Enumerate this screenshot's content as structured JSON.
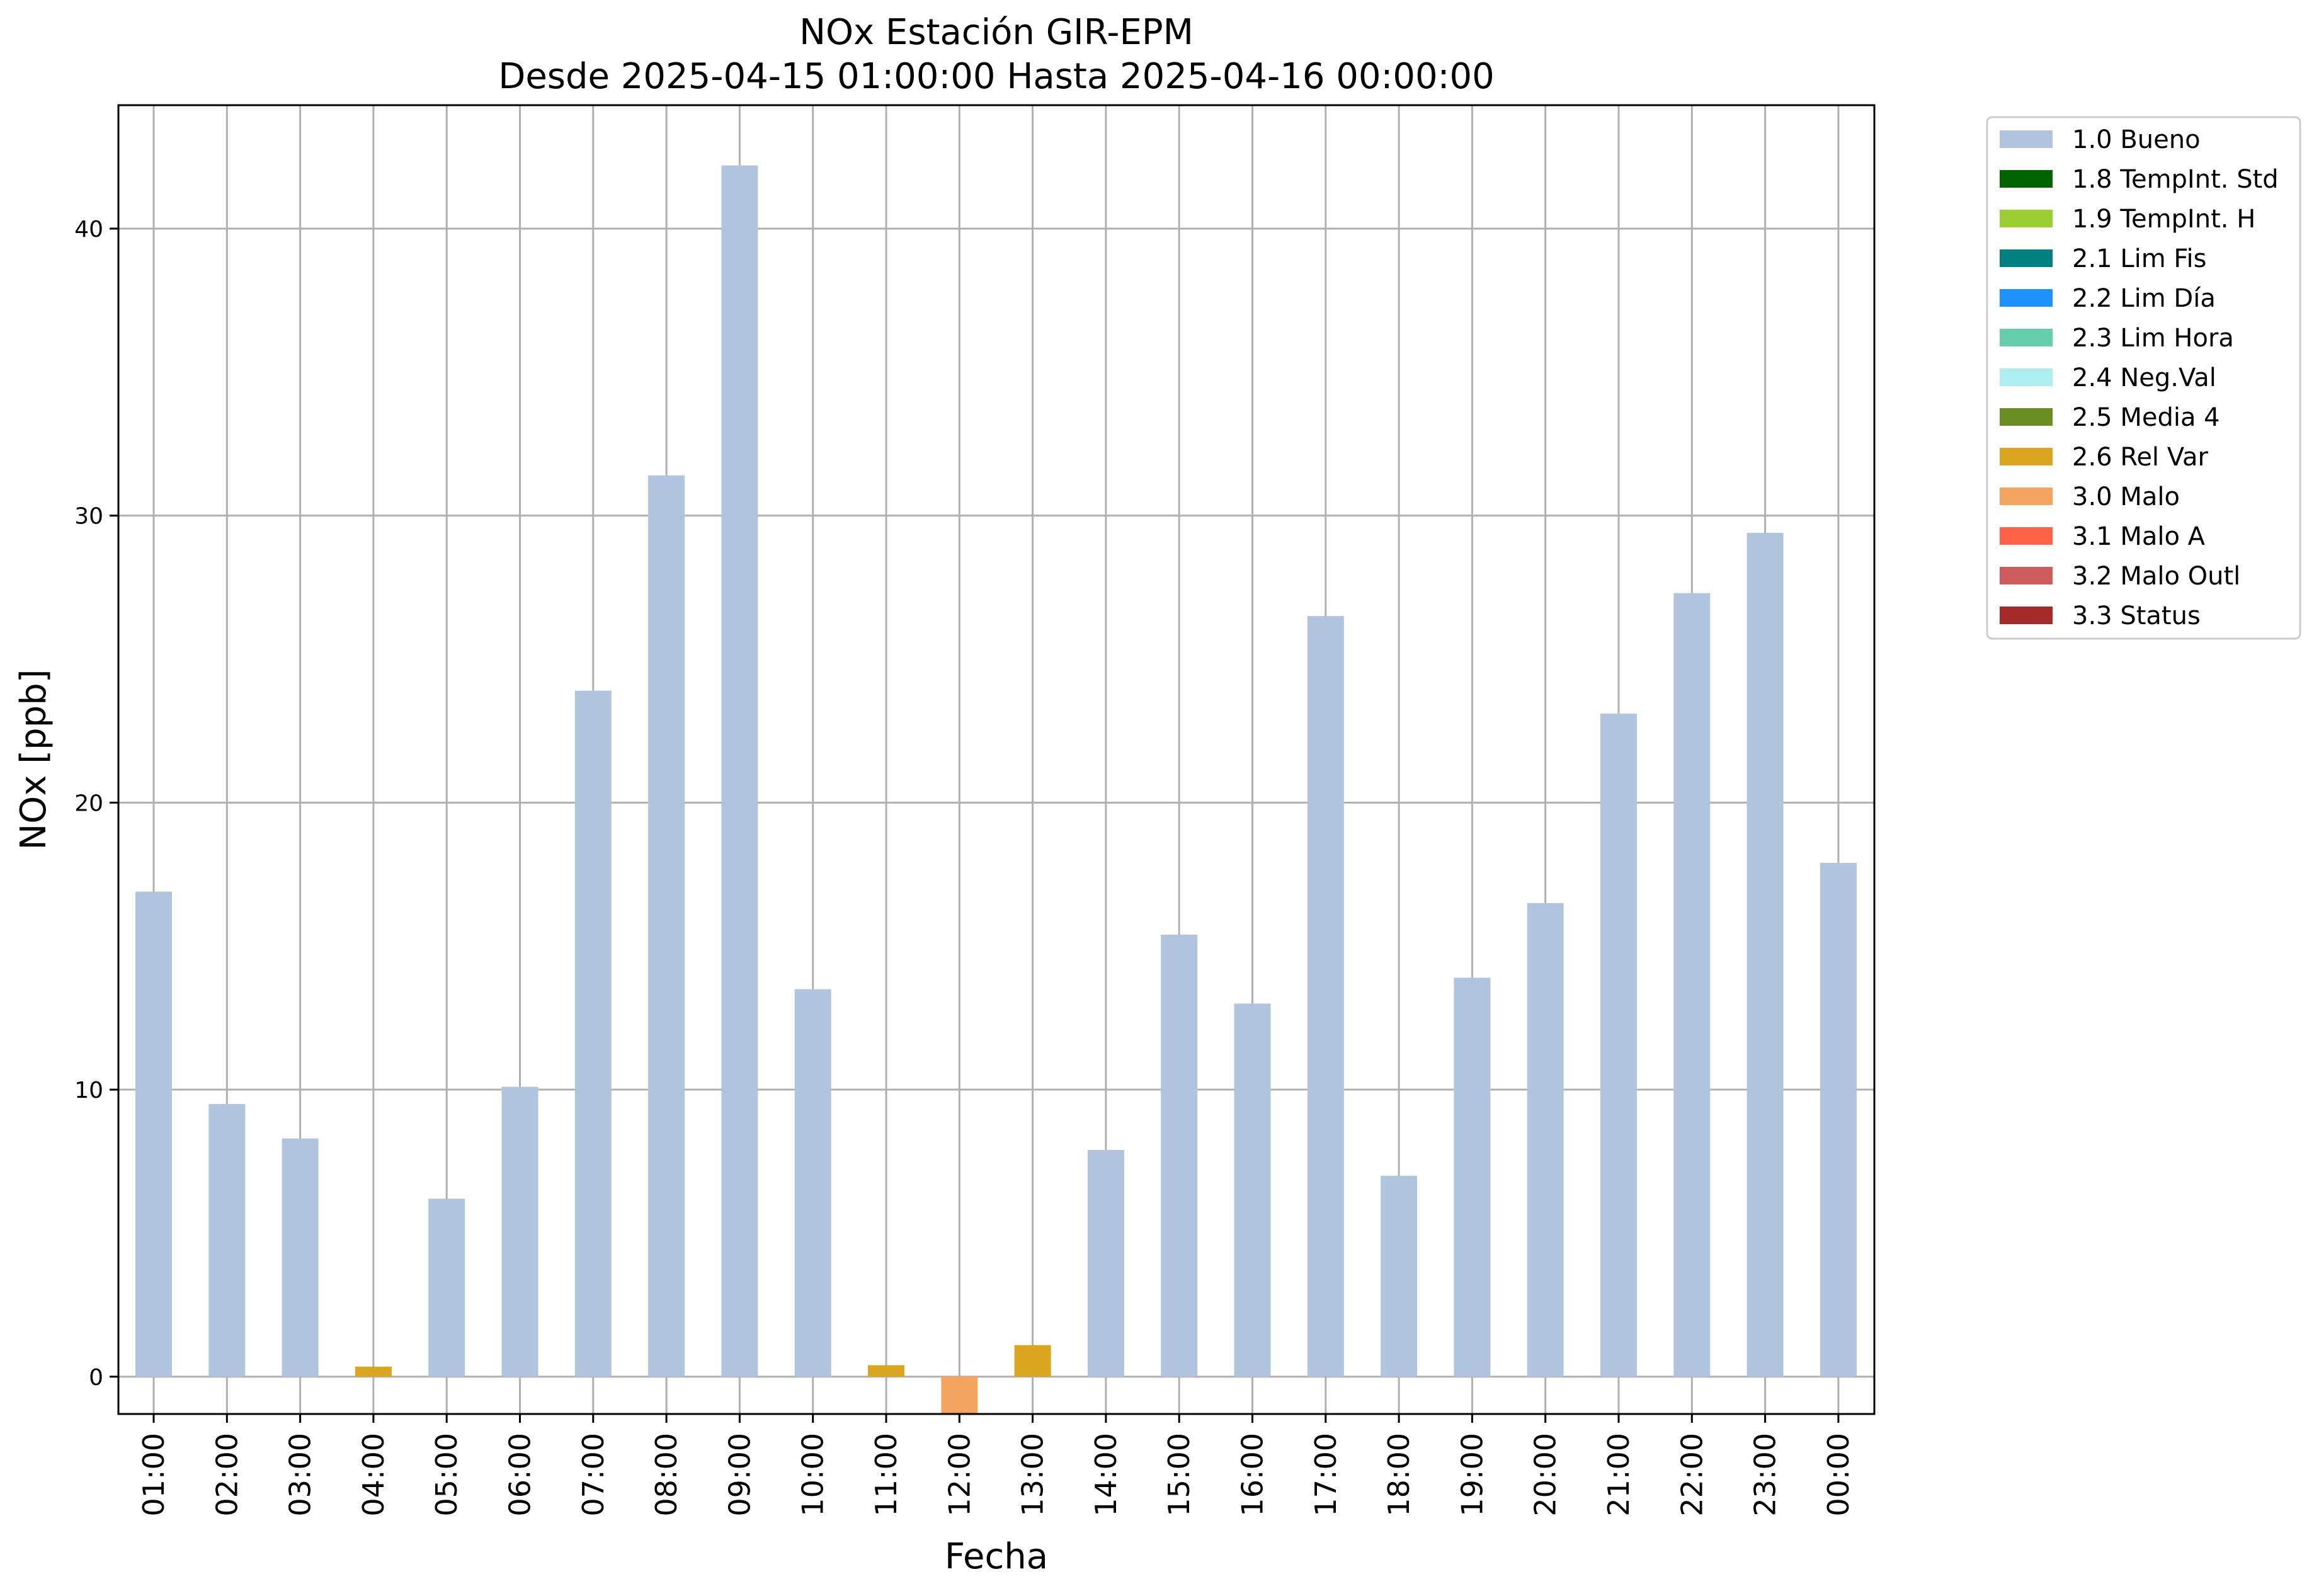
{
  "chart_data": {
    "type": "bar",
    "title": "NOx Estación GIR-EPM",
    "subtitle": "Desde 2025-04-15 01:00:00 Hasta 2025-04-16 00:00:00",
    "xlabel": "Fecha",
    "ylabel": "NOx [ppb]",
    "ylim": [
      -1.3,
      44.3
    ],
    "yticks": [
      0,
      10,
      20,
      30,
      40
    ],
    "grid": true,
    "legend_position": "outside-top-right",
    "categories": [
      "01:00",
      "02:00",
      "03:00",
      "04:00",
      "05:00",
      "06:00",
      "07:00",
      "08:00",
      "09:00",
      "10:00",
      "11:00",
      "12:00",
      "13:00",
      "14:00",
      "15:00",
      "16:00",
      "17:00",
      "18:00",
      "19:00",
      "20:00",
      "21:00",
      "22:00",
      "23:00",
      "00:00"
    ],
    "values": [
      16.9,
      9.5,
      8.3,
      0.35,
      6.2,
      10.1,
      23.9,
      31.4,
      42.2,
      13.5,
      0.4,
      -1.3,
      1.1,
      7.9,
      15.4,
      13.0,
      26.5,
      7.0,
      13.9,
      16.5,
      23.1,
      27.3,
      29.4,
      17.9
    ],
    "flags": [
      "1.0 Bueno",
      "1.0 Bueno",
      "1.0 Bueno",
      "2.6 Rel Var",
      "1.0 Bueno",
      "1.0 Bueno",
      "1.0 Bueno",
      "1.0 Bueno",
      "1.0 Bueno",
      "1.0 Bueno",
      "2.6 Rel Var",
      "3.0 Malo",
      "2.6 Rel Var",
      "1.0 Bueno",
      "1.0 Bueno",
      "1.0 Bueno",
      "1.0 Bueno",
      "1.0 Bueno",
      "1.0 Bueno",
      "1.0 Bueno",
      "1.0 Bueno",
      "1.0 Bueno",
      "1.0 Bueno",
      "1.0 Bueno"
    ],
    "legend": [
      {
        "label": "1.0 Bueno",
        "color": "#b0c4de"
      },
      {
        "label": "1.8 TempInt. Std",
        "color": "#006400"
      },
      {
        "label": "1.9 TempInt. H",
        "color": "#9acd32"
      },
      {
        "label": "2.1 Lim Fis",
        "color": "#008080"
      },
      {
        "label": "2.2 Lim Día",
        "color": "#1e90ff"
      },
      {
        "label": "2.3 Lim Hora",
        "color": "#66cdaa"
      },
      {
        "label": "2.4 Neg.Val",
        "color": "#afeeee"
      },
      {
        "label": "2.5 Media 4",
        "color": "#6b8e23"
      },
      {
        "label": "2.6 Rel Var",
        "color": "#daa520"
      },
      {
        "label": "3.0 Malo",
        "color": "#f4a460"
      },
      {
        "label": "3.1 Malo A",
        "color": "#ff6347"
      },
      {
        "label": "3.2 Malo Outl",
        "color": "#cd5c5c"
      },
      {
        "label": "3.3 Status",
        "color": "#a52a2a"
      }
    ]
  }
}
